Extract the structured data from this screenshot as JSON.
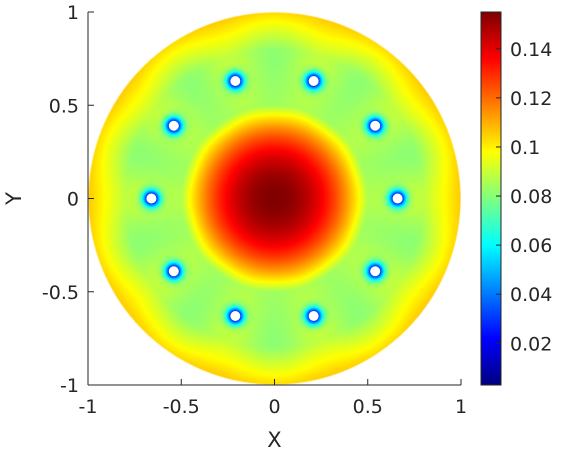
{
  "chart_data": {
    "type": "heatmap",
    "title": "",
    "xlabel": "X",
    "ylabel": "Y",
    "xlim": [
      -1,
      1
    ],
    "ylim": [
      -1,
      1
    ],
    "xticks": [
      "-1",
      "-0.5",
      "0",
      "0.5",
      "1"
    ],
    "yticks": [
      "1",
      "0.5",
      "0",
      "-0.5",
      "-1"
    ],
    "domain": "disk of radius 1 centered at (0,0)",
    "colormap": "jet",
    "clim": [
      0.003,
      0.155
    ],
    "colorbar_ticks": [
      "0.14",
      "0.12",
      "0.1",
      "0.08",
      "0.06",
      "0.04",
      "0.02"
    ],
    "grid": false,
    "field": {
      "center_value": 0.155,
      "edge_value": 0.105,
      "ring_plateau_value": 0.085,
      "sink_value": 0.003
    },
    "sinks": [
      {
        "x": 0.66,
        "y": 0.0
      },
      {
        "x": 0.54,
        "y": 0.39
      },
      {
        "x": 0.21,
        "y": 0.63
      },
      {
        "x": -0.21,
        "y": 0.63
      },
      {
        "x": -0.54,
        "y": 0.39
      },
      {
        "x": -0.66,
        "y": 0.0
      },
      {
        "x": -0.54,
        "y": -0.39
      },
      {
        "x": -0.21,
        "y": -0.63
      },
      {
        "x": 0.21,
        "y": -0.63
      },
      {
        "x": 0.54,
        "y": -0.39
      }
    ]
  }
}
